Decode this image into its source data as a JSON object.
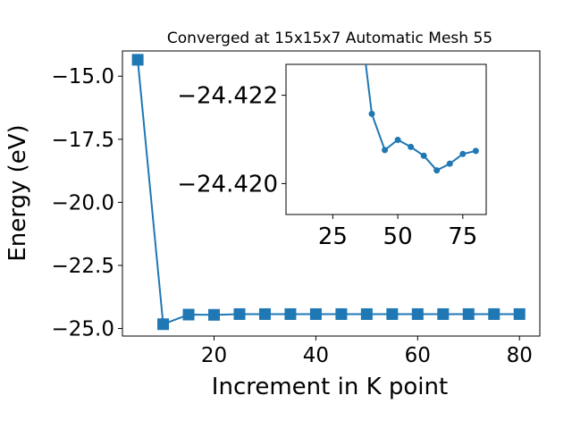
{
  "chart_data": [
    {
      "type": "line",
      "title": "Converged at 15x15x7 Automatic Mesh 55",
      "xlabel": "Increment in K point",
      "ylabel": "Energy (eV)",
      "xlim": [
        2,
        84
      ],
      "ylim": [
        -25.3,
        -14.0
      ],
      "xticks": [
        20,
        40,
        60,
        80
      ],
      "yticks": [
        -15.0,
        -17.5,
        -20.0,
        -22.5,
        -25.0
      ],
      "xtick_labels": [
        "20",
        "40",
        "60",
        "80"
      ],
      "ytick_labels": [
        "−15.0",
        "−17.5",
        "−20.0",
        "−22.5",
        "−25.0"
      ],
      "marker": "square",
      "color": "#1f77b4",
      "grid": false,
      "series": [
        {
          "x": [
            5,
            10,
            15,
            20,
            25,
            30,
            35,
            40,
            45,
            50,
            55,
            60,
            65,
            70,
            75,
            80
          ],
          "values": [
            -14.35,
            -24.83,
            -24.45,
            -24.46,
            -24.43,
            -24.43,
            -24.43,
            -24.43,
            -24.43,
            -24.43,
            -24.43,
            -24.43,
            -24.43,
            -24.43,
            -24.43,
            -24.43
          ]
        }
      ]
    },
    {
      "type": "line",
      "role": "inset",
      "title": "",
      "xlabel": "",
      "ylabel": "",
      "xlim": [
        7,
        84
      ],
      "ylim": [
        -24.4193,
        -24.4227
      ],
      "xticks": [
        25,
        50,
        75
      ],
      "yticks": [
        -24.422,
        -24.42
      ],
      "xtick_labels": [
        "25",
        "50",
        "75"
      ],
      "ytick_labels": [
        "−24.422",
        "−24.420"
      ],
      "marker": "circle",
      "color": "#1f77b4",
      "grid": false,
      "series": [
        {
          "x": [
            35,
            40,
            45,
            50,
            55,
            60,
            65,
            70,
            75,
            80
          ],
          "values": [
            -24.424,
            -24.42158,
            -24.42076,
            -24.42099,
            -24.42083,
            -24.42063,
            -24.4203,
            -24.42045,
            -24.42067,
            -24.42074
          ]
        }
      ]
    }
  ]
}
